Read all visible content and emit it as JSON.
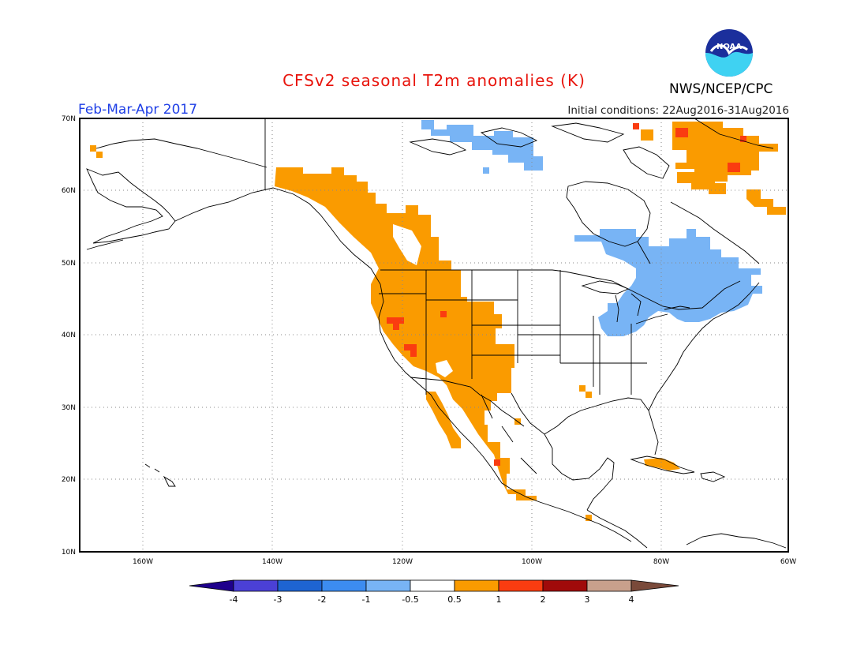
{
  "header": {
    "title": "CFSv2 seasonal T2m anomalies (K)",
    "period": "Feb-Mar-Apr 2017",
    "initial_conditions": "Initial conditions: 22Aug2016-31Aug2016",
    "organization": "NWS/NCEP/CPC",
    "logo_text": "NOAA"
  },
  "map": {
    "projection": "lat-lon",
    "lon_range": [
      -172,
      -60
    ],
    "lat_range": [
      10,
      70
    ],
    "lat_ticks": [
      "10N",
      "20N",
      "30N",
      "40N",
      "50N",
      "60N",
      "70N"
    ],
    "lon_ticks": [
      "160W",
      "140W",
      "120W",
      "100W",
      "80W",
      "60W"
    ],
    "grid": "dotted"
  },
  "colorbar": {
    "labels": [
      "-4",
      "-3",
      "-2",
      "-1",
      "-0.5",
      "0.5",
      "1",
      "2",
      "3",
      "4"
    ],
    "colors": {
      "lt_minus4": "#1e008c",
      "m4_m3": "#4b40d6",
      "m3_m2": "#1e64d2",
      "m2_m1": "#3c8cf0",
      "m1_m05": "#78b4f5",
      "m05_05": "#ffffff",
      "p05_p1": "#fa9b00",
      "p1_p2": "#fa3c10",
      "p2_p3": "#a00a0a",
      "p3_p4": "#c8a08c",
      "gt_p4": "#7a4a3a"
    }
  },
  "anomaly_regions": [
    {
      "name": "western-north-america-warm",
      "category": "0.5 to 1"
    },
    {
      "name": "northeast-canada-warm",
      "category": "0.5 to 1"
    },
    {
      "name": "great-lakes-quebec-cool",
      "category": "-1 to -0.5"
    },
    {
      "name": "arctic-archipelago-cool",
      "category": "-1 to -0.5"
    },
    {
      "name": "cuba-warm",
      "category": "0.5 to 1"
    },
    {
      "name": "california-nevada-hot-spots",
      "category": "1 to 2"
    },
    {
      "name": "northeast-canada-hot-spots",
      "category": "1 to 2"
    }
  ]
}
